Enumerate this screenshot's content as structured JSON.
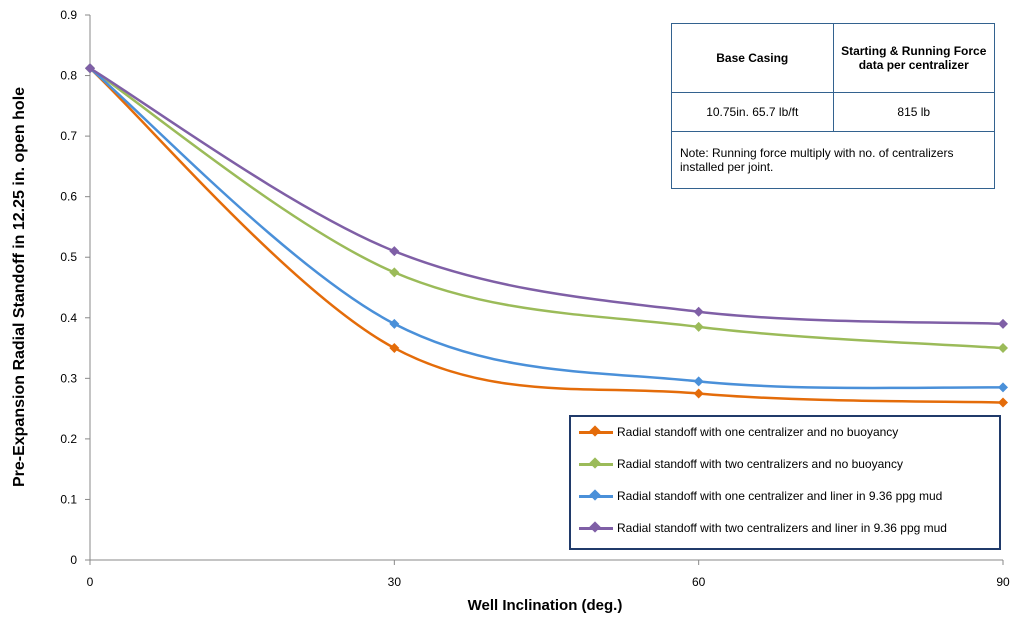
{
  "chart_data": {
    "type": "line",
    "xlabel": "Well Inclination (deg.)",
    "ylabel": "Pre-Expansion Radial Standoff in 12.25 in. open hole",
    "x": [
      0,
      30,
      60,
      90
    ],
    "xlim": [
      0,
      90
    ],
    "ylim": [
      0,
      0.9
    ],
    "x_ticks": [
      "0",
      "30",
      "60",
      "90"
    ],
    "y_ticks": [
      "0",
      "0.1",
      "0.2",
      "0.3",
      "0.4",
      "0.5",
      "0.6",
      "0.7",
      "0.8",
      "0.9"
    ],
    "grid": false,
    "smooth": true,
    "legend_position": "bottom-right",
    "series": [
      {
        "name": "Radial standoff with one centralizer and no buoyancy",
        "values": [
          0.812,
          0.35,
          0.275,
          0.26
        ],
        "color": "#e46c0a"
      },
      {
        "name": "Radial standoff with two centralizers and no buoyancy",
        "values": [
          0.812,
          0.475,
          0.385,
          0.35
        ],
        "color": "#9bbb59"
      },
      {
        "name": "Radial standoff with one centralizer and liner in 9.36 ppg mud",
        "values": [
          0.812,
          0.39,
          0.295,
          0.285
        ],
        "color": "#4a90d9"
      },
      {
        "name": "Radial standoff with two centralizers and liner in 9.36 ppg mud",
        "values": [
          0.812,
          0.51,
          0.41,
          0.39
        ],
        "color": "#7f5fa6"
      }
    ]
  },
  "info_table": {
    "col1_header": "Base Casing",
    "col2_header": "Starting & Running Force data per centralizer",
    "col1_value": "10.75in. 65.7 lb/ft",
    "col2_value": "815 lb",
    "note": "Note: Running force multiply with no. of centralizers installed per joint."
  }
}
